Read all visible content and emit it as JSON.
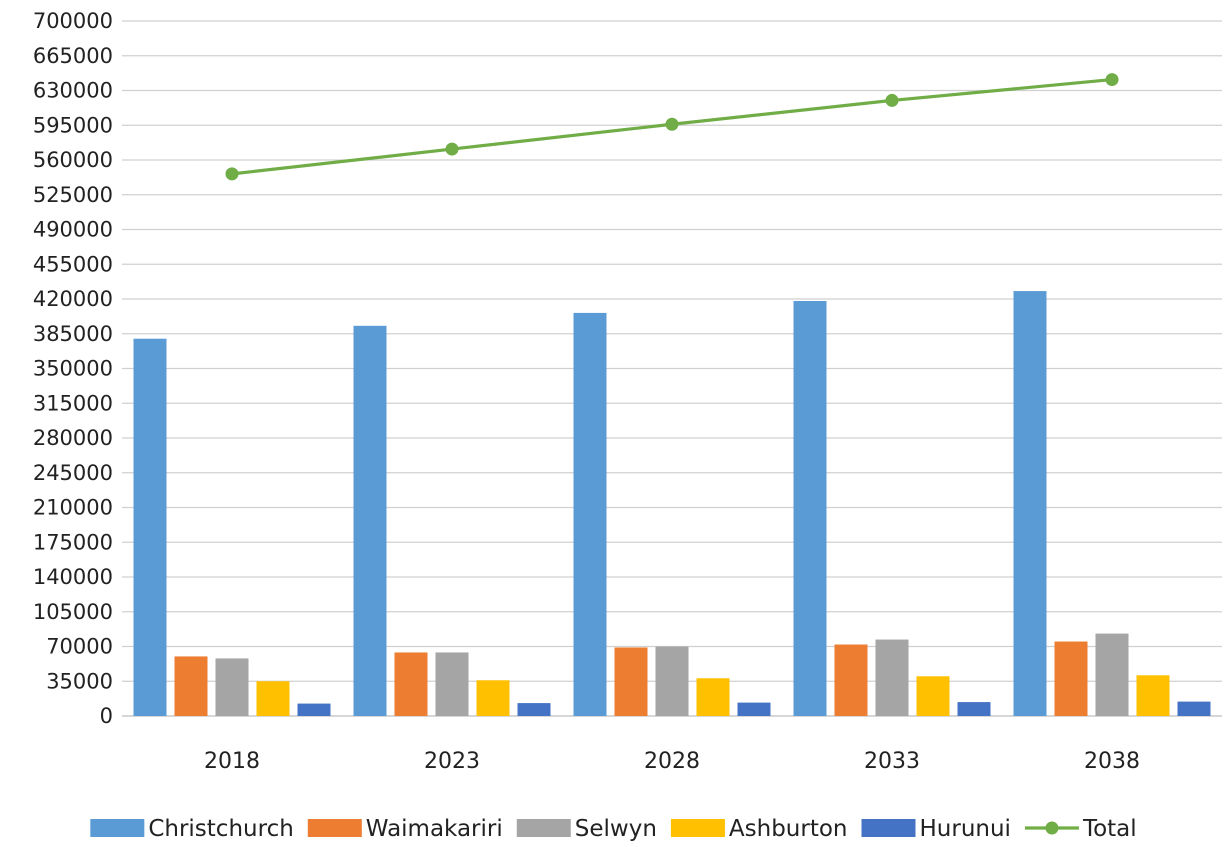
{
  "chart_data": {
    "type": "bar",
    "categories": [
      "2018",
      "2023",
      "2028",
      "2033",
      "2038"
    ],
    "ylim": [
      0,
      700000
    ],
    "yticks": [
      0,
      35000,
      70000,
      105000,
      140000,
      175000,
      210000,
      245000,
      280000,
      315000,
      350000,
      385000,
      420000,
      455000,
      490000,
      525000,
      560000,
      595000,
      630000,
      665000,
      700000
    ],
    "grid": true,
    "legend_position": "bottom",
    "series": [
      {
        "name": "Christchurch",
        "type": "bar",
        "color": "#5b9bd5",
        "values": [
          380000,
          393000,
          406000,
          418000,
          428000
        ]
      },
      {
        "name": "Waimakariri",
        "type": "bar",
        "color": "#ed7d31",
        "values": [
          60000,
          64000,
          69000,
          72000,
          75000
        ]
      },
      {
        "name": "Selwyn",
        "type": "bar",
        "color": "#a5a5a5",
        "values": [
          58000,
          64000,
          70000,
          77000,
          83000
        ]
      },
      {
        "name": "Ashburton",
        "type": "bar",
        "color": "#ffc000",
        "values": [
          35000,
          36000,
          38000,
          40000,
          41000
        ]
      },
      {
        "name": "Hurunui",
        "type": "bar",
        "color": "#4472c4",
        "values": [
          12500,
          13000,
          13500,
          14000,
          14500
        ]
      },
      {
        "name": "Total",
        "type": "line",
        "color": "#70ad47",
        "values": [
          546000,
          571000,
          596000,
          620000,
          641000
        ]
      }
    ]
  }
}
